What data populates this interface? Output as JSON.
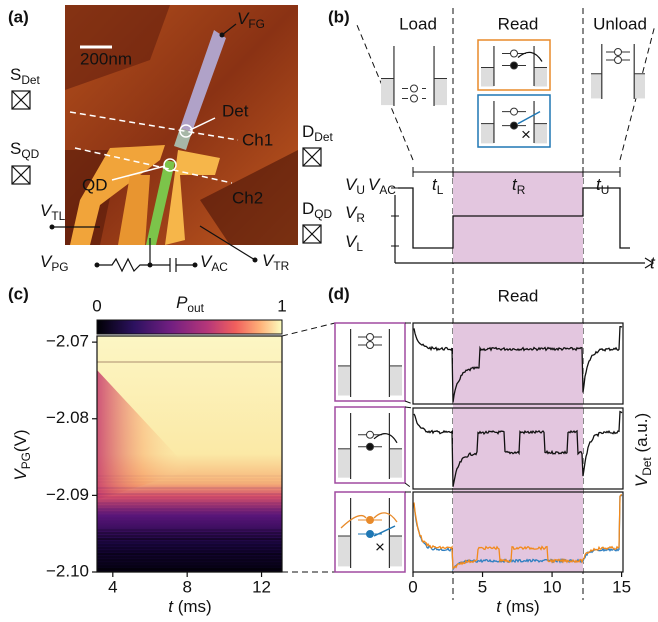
{
  "panel_labels": [
    "(a)",
    "(b)",
    "(c)",
    "(d)"
  ],
  "panel_a": {
    "scale_bar": "200nm",
    "v_fg": [
      "V",
      "FG"
    ],
    "det": "Det",
    "ch1": "Ch1",
    "ch2": "Ch2",
    "qd": "QD",
    "s_det": [
      "S",
      "Det"
    ],
    "d_det": [
      "D",
      "Det"
    ],
    "s_qd": [
      "S",
      "QD"
    ],
    "d_qd": [
      "D",
      "QD"
    ],
    "v_tl": [
      "V",
      "TL"
    ],
    "v_tr": [
      "V",
      "TR"
    ],
    "v_pg": [
      "V",
      "PG"
    ],
    "v_ac": [
      "V",
      "AC"
    ]
  },
  "panel_b": {
    "phases": [
      "Load",
      "Read",
      "Unload"
    ],
    "v_ac": [
      "V",
      "AC"
    ],
    "t_l": [
      "t",
      "L"
    ],
    "t_r": [
      "t",
      "R"
    ],
    "t_u": [
      "t",
      "U"
    ],
    "v_u": [
      "V",
      "U"
    ],
    "v_r": [
      "V",
      "R"
    ],
    "v_l": [
      "V",
      "L"
    ],
    "t_axis": "t"
  },
  "panel_c": {
    "colorbar": {
      "label": [
        "P",
        "out"
      ],
      "ticks": [
        0,
        1
      ]
    },
    "ylabel": [
      "V",
      "PG",
      "(V)"
    ],
    "xlabel": [
      "t",
      " (ms)"
    ],
    "xlim": [
      3.15,
      13.1
    ],
    "xticks": [
      4,
      8,
      12
    ],
    "ylim": [
      -2.0692,
      -2.1
    ],
    "yticks": [
      {
        "value": -2.07,
        "label": "−2.07"
      },
      {
        "value": -2.08,
        "label": "−2.08"
      },
      {
        "value": -2.09,
        "label": "−2.09"
      },
      {
        "value": -2.1,
        "label": "−2.10"
      }
    ]
  },
  "panel_d": {
    "title": "Read",
    "xlabel": [
      "t",
      " (ms)"
    ],
    "ylabel": [
      "V",
      "Det",
      " (a.u.)"
    ],
    "xlim": [
      0,
      15.1
    ],
    "xticks": [
      0,
      5,
      10,
      15
    ]
  }
}
